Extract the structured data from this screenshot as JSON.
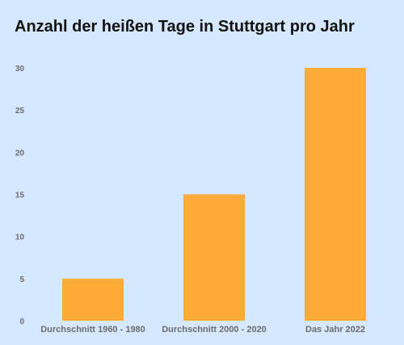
{
  "chart_data": {
    "type": "bar",
    "title": "Anzahl der heißen Tage in Stuttgart pro Jahr",
    "categories": [
      "Durchschnitt 1960 - 1980",
      "Durchschnitt 2000 - 2020",
      "Das Jahr 2022"
    ],
    "values": [
      5,
      15,
      30
    ],
    "xlabel": "",
    "ylabel": "",
    "ylim": [
      0,
      30
    ],
    "yticks": [
      0,
      5,
      10,
      15,
      20,
      25,
      30
    ],
    "grid": false,
    "legend": "none",
    "colors": {
      "bar": "#ffab38",
      "background": "#d6e8ff",
      "text": "#6b6b6b",
      "title": "#111111"
    }
  }
}
